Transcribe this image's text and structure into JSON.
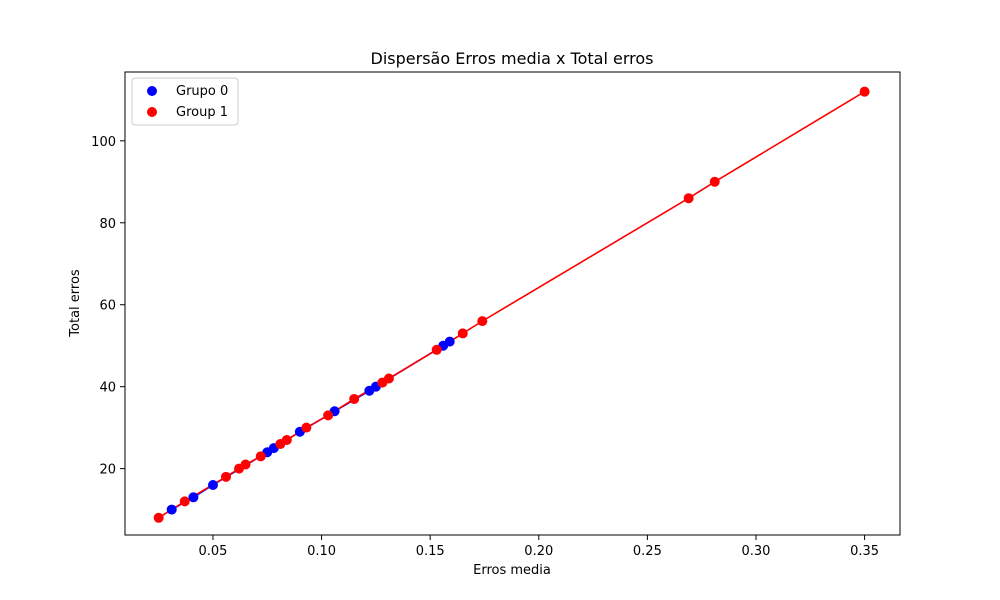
{
  "chart_data": {
    "type": "scatter",
    "title": "Dispersão Erros media x Total erros",
    "xlabel": "Erros media",
    "ylabel": "Total erros",
    "xlim": [
      0.0095,
      0.3663
    ],
    "ylim": [
      3.8,
      116.8
    ],
    "xticks": [
      0.05,
      0.1,
      0.15,
      0.2,
      0.25,
      0.3,
      0.35
    ],
    "xtick_labels": [
      "0.05",
      "0.10",
      "0.15",
      "0.20",
      "0.25",
      "0.30",
      "0.35"
    ],
    "yticks": [
      20,
      40,
      60,
      80,
      100
    ],
    "ytick_labels": [
      "20",
      "40",
      "60",
      "80",
      "100"
    ],
    "grid": false,
    "legend_position": "top-left",
    "series": [
      {
        "name": "Grupo 0",
        "color": "#0000ff",
        "x": [
          0.031,
          0.041,
          0.05,
          0.075,
          0.078,
          0.09,
          0.106,
          0.122,
          0.125,
          0.156,
          0.159
        ],
        "y": [
          10,
          13,
          16,
          24,
          25,
          29,
          34,
          39,
          40,
          50,
          51
        ]
      },
      {
        "name": "Group 1",
        "color": "#ff0000",
        "x": [
          0.025,
          0.037,
          0.056,
          0.062,
          0.065,
          0.072,
          0.081,
          0.084,
          0.093,
          0.103,
          0.115,
          0.128,
          0.131,
          0.153,
          0.165,
          0.174,
          0.269,
          0.281,
          0.35
        ],
        "y": [
          8,
          12,
          18,
          20,
          21,
          23,
          26,
          27,
          30,
          33,
          37,
          41,
          42,
          49,
          53,
          56,
          86,
          90,
          112
        ]
      }
    ]
  }
}
